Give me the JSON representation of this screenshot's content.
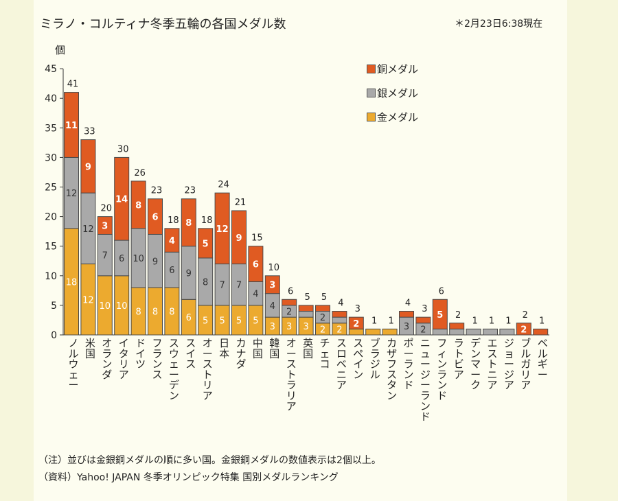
{
  "header": {
    "title": "ミラノ・コルティナ冬季五輪の各国メダル数",
    "timestamp": "＊2月23日6:38現在",
    "unit": "個"
  },
  "footer": {
    "note": "（注）並びは金銀銅メダルの順に多い国。金銀銅メダルの数値表示は2個以上。",
    "source": "（資料）Yahoo! JAPAN 冬季オリンピック特集 国別メダルランキング"
  },
  "colors": {
    "gold": "#ecaa2f",
    "silver": "#a9a9a9",
    "bronze": "#e05b22"
  },
  "chart_data": {
    "type": "bar",
    "stacked": true,
    "ylabel": "個",
    "ylim": [
      0,
      45
    ],
    "yticks": [
      0,
      5,
      10,
      15,
      20,
      25,
      30,
      35,
      40,
      45
    ],
    "grid": false,
    "legend_position": "top-right",
    "label_threshold": 2,
    "categories": [
      "ノルウェー",
      "米国",
      "オランダ",
      "イタリア",
      "ドイツ",
      "フランス",
      "スウェーデン",
      "スイス",
      "オーストリア",
      "日本",
      "カナダ",
      "中国",
      "韓国",
      "オーストラリア",
      "英国",
      "チェコ",
      "スロベニア",
      "スペイン",
      "ブラジル",
      "カザフスタン",
      "ポーランド",
      "ニュージーランド",
      "フィンランド",
      "ラトビア",
      "デンマーク",
      "エストニア",
      "ジョージア",
      "ブルガリア",
      "ベルギー"
    ],
    "series": [
      {
        "name": "金メダル",
        "values": [
          18,
          12,
          10,
          10,
          8,
          8,
          8,
          6,
          5,
          5,
          5,
          5,
          3,
          3,
          3,
          2,
          2,
          1,
          1,
          1,
          0,
          0,
          0,
          0,
          0,
          0,
          0,
          0,
          0
        ]
      },
      {
        "name": "銀メダル",
        "values": [
          12,
          12,
          7,
          6,
          10,
          9,
          6,
          9,
          8,
          7,
          7,
          4,
          4,
          2,
          1,
          2,
          1,
          0,
          0,
          0,
          3,
          2,
          1,
          1,
          1,
          1,
          1,
          0,
          0
        ]
      },
      {
        "name": "銅メダル",
        "values": [
          11,
          9,
          3,
          14,
          8,
          6,
          4,
          8,
          5,
          12,
          9,
          6,
          3,
          1,
          1,
          1,
          1,
          2,
          0,
          0,
          1,
          1,
          5,
          1,
          0,
          0,
          0,
          2,
          1
        ]
      }
    ],
    "totals": [
      41,
      33,
      20,
      30,
      26,
      23,
      18,
      23,
      18,
      24,
      21,
      15,
      10,
      6,
      5,
      5,
      4,
      3,
      1,
      1,
      4,
      3,
      6,
      2,
      1,
      1,
      1,
      2,
      1
    ]
  }
}
